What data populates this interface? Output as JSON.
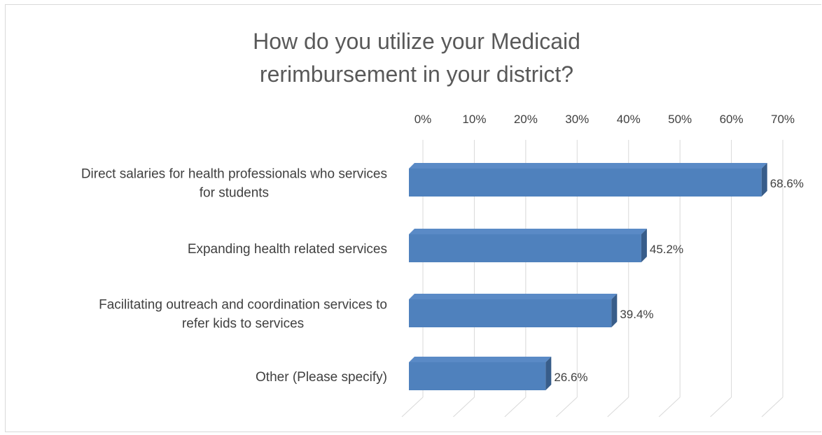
{
  "chart_data": {
    "type": "bar",
    "orientation": "horizontal",
    "style": "3d",
    "title_lines": [
      "How do you utilize your Medicaid",
      "rerimbursement in your district?"
    ],
    "categories": [
      [
        "Direct salaries for health professionals who services",
        "for students"
      ],
      [
        "Expanding health related services"
      ],
      [
        "Facilitating outreach and coordination services to",
        "refer kids to services"
      ],
      [
        "Other (Please specify)"
      ]
    ],
    "values": [
      68.6,
      45.2,
      39.4,
      26.6
    ],
    "data_labels": [
      "68.6%",
      "45.2%",
      "39.4%",
      "26.6%"
    ],
    "xlim": [
      0,
      70
    ],
    "x_ticks": [
      "0%",
      "10%",
      "20%",
      "30%",
      "40%",
      "50%",
      "60%",
      "70%"
    ],
    "x_axis_position": "top",
    "grid": true,
    "legend": "none",
    "colors": {
      "bar_front": "#4f81bd",
      "bar_top": "#5a8ac6",
      "bar_side": "#385d8a",
      "grid": "#d9d9d9",
      "text": "#404040",
      "title": "#595959"
    }
  }
}
